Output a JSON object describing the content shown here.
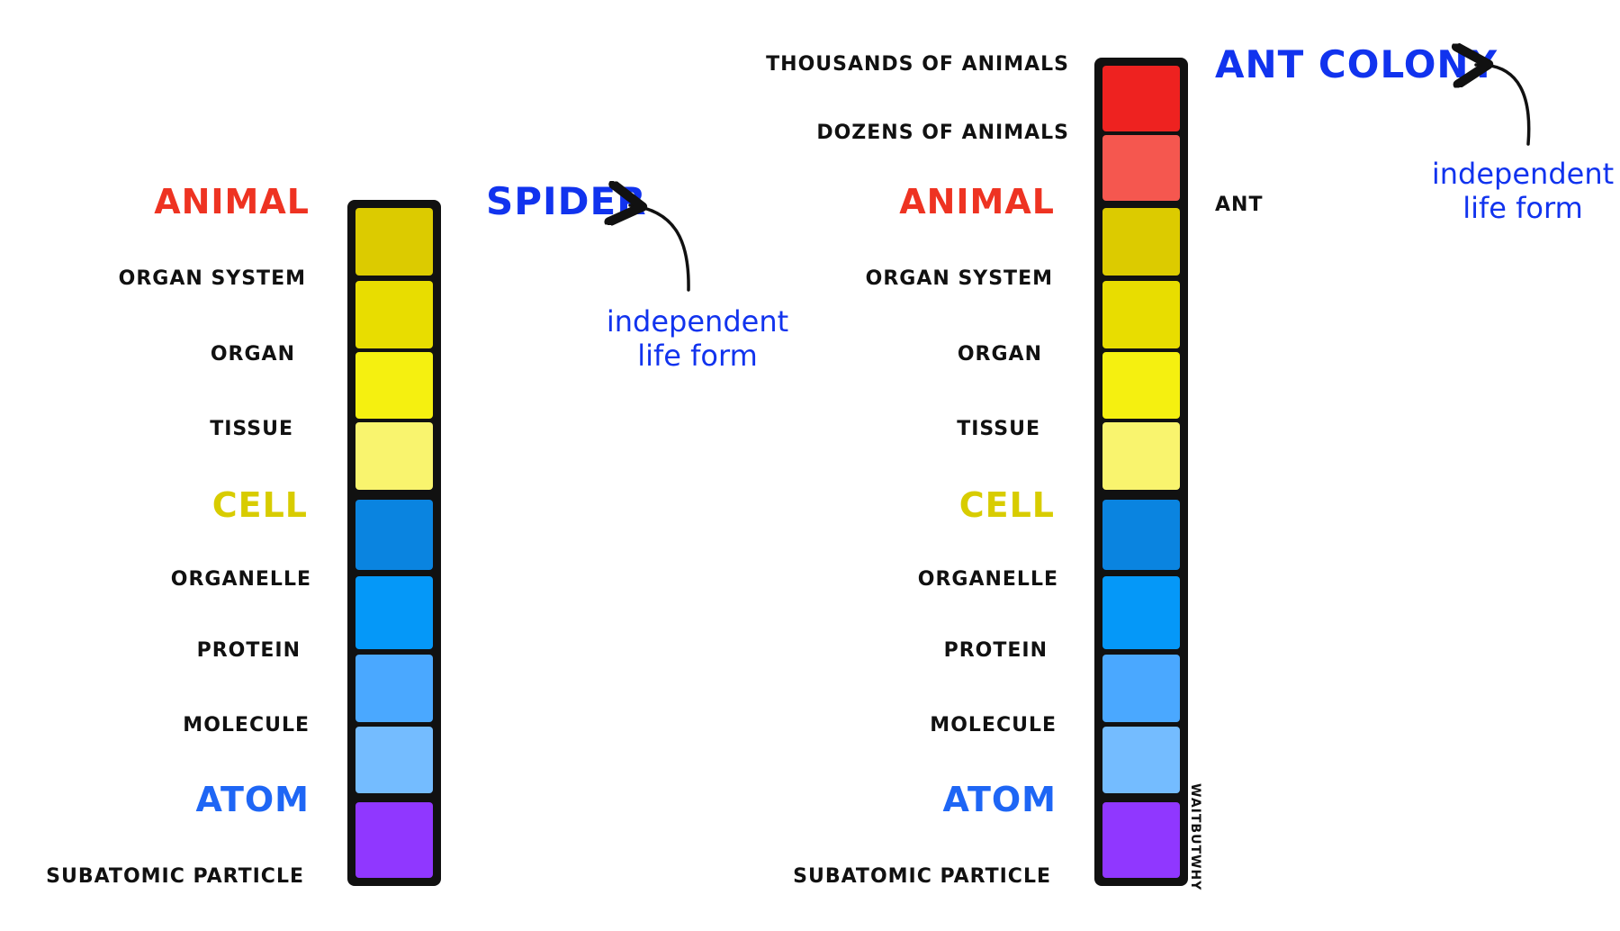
{
  "colors": {
    "animal": "#ee3322",
    "cell": "#d8cc00",
    "atom": "#1e66f5",
    "annotation": "#1133ee",
    "outline": "#111111"
  },
  "left": {
    "organism": "SPIDER",
    "note_line1": "independent",
    "note_line2": "life form",
    "labels": {
      "animal": "ANIMAL",
      "organ_system": "ORGAN SYSTEM",
      "organ": "ORGAN",
      "tissue": "TISSUE",
      "cell": "CELL",
      "organelle": "ORGANELLE",
      "protein": "PROTEIN",
      "molecule": "MOLECULE",
      "atom": "ATOM",
      "subatomic": "SUBATOMIC PARTICLE"
    },
    "blocks": [
      "#dccb00",
      "#e8dd00",
      "#f5f010",
      "#f9f46e",
      "#0a84e0",
      "#0598f8",
      "#4aa8ff",
      "#74bcff",
      "#9037ff"
    ]
  },
  "right": {
    "organism": "ANT COLONY",
    "individual": "ANT",
    "note_line1": "independent",
    "note_line2": "life form",
    "labels": {
      "thousands": "THOUSANDS OF ANIMALS",
      "dozens": "DOZENS OF ANIMALS",
      "animal": "ANIMAL",
      "organ_system": "ORGAN SYSTEM",
      "organ": "ORGAN",
      "tissue": "TISSUE",
      "cell": "CELL",
      "organelle": "ORGANELLE",
      "protein": "PROTEIN",
      "molecule": "MOLECULE",
      "atom": "ATOM",
      "subatomic": "SUBATOMIC PARTICLE"
    },
    "blocks": [
      "#ee2220",
      "#f5574f",
      "#dccb00",
      "#e8dd00",
      "#f5f010",
      "#f9f46e",
      "#0a84e0",
      "#0598f8",
      "#4aa8ff",
      "#74bcff",
      "#9037ff"
    ]
  },
  "credit": "WAITBUTWHY"
}
